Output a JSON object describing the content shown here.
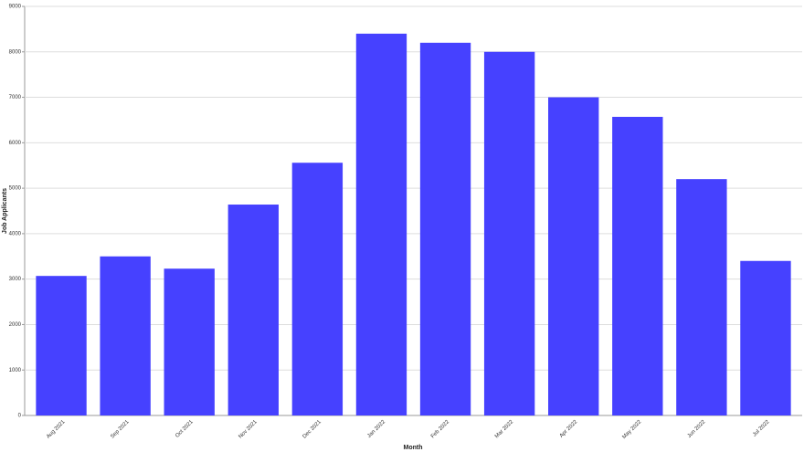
{
  "chart_data": {
    "type": "bar",
    "x_label": "Month",
    "y_label": "Job Applicants",
    "categories": [
      "Aug 2021",
      "Sep 2021",
      "Oct 2021",
      "Nov 2021",
      "Dec 2021",
      "Jan 2022",
      "Feb 2022",
      "Mar 2022",
      "Apr 2022",
      "May 2022",
      "Jun 2022",
      "Jul 2022"
    ],
    "values": [
      3070,
      3500,
      3230,
      4640,
      5560,
      8400,
      8200,
      8000,
      7000,
      6570,
      5200,
      3400
    ],
    "color": "#4641ff",
    "ylim": [
      0,
      9000
    ],
    "yticks": [
      0,
      1000,
      2000,
      3000,
      4000,
      5000,
      6000,
      7000,
      8000,
      9000
    ],
    "grid": true
  }
}
